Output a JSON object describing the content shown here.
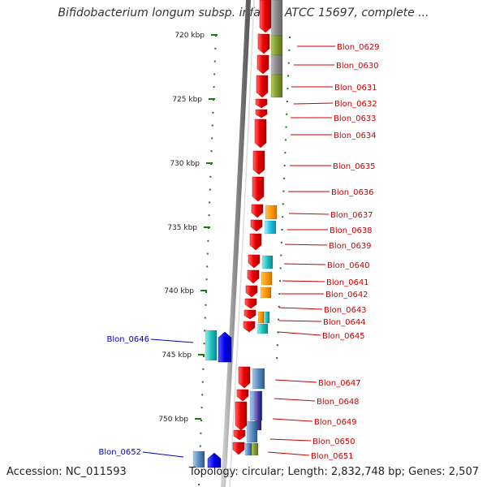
{
  "title": "Bifidobacterium longum subsp. infantis ATCC 15697, complete ...",
  "accession": "Accession: NC_011593",
  "topology": "Topology: circular; Length: 2,832,748 bp; Genes: 2,507",
  "colors": {
    "gene_red": "#ee0000",
    "label_red": "#cc0000",
    "label_blue": "#0000cc",
    "tick_green": "#1a7a1a",
    "backbone_grey": "#999999"
  },
  "ruler": [
    {
      "label": "720 kbp"
    },
    {
      "label": "725 kbp"
    },
    {
      "label": "730 kbp"
    },
    {
      "label": "735 kbp"
    },
    {
      "label": "740 kbp"
    },
    {
      "label": "745 kbp"
    },
    {
      "label": "750 kbp"
    }
  ],
  "genes_right": [
    {
      "name": "Blon_0629"
    },
    {
      "name": "Blon_0630"
    },
    {
      "name": "Blon_0631"
    },
    {
      "name": "Blon_0632"
    },
    {
      "name": "Blon_0633"
    },
    {
      "name": "Blon_0634"
    },
    {
      "name": "Blon_0635"
    },
    {
      "name": "Blon_0636"
    },
    {
      "name": "Blon_0637"
    },
    {
      "name": "Blon_0638"
    },
    {
      "name": "Blon_0639"
    },
    {
      "name": "Blon_0640"
    },
    {
      "name": "Blon_0641"
    },
    {
      "name": "Blon_0642"
    },
    {
      "name": "Blon_0643"
    },
    {
      "name": "Blon_0644"
    },
    {
      "name": "Blon_0645"
    },
    {
      "name": "Blon_0647"
    },
    {
      "name": "Blon_0648"
    },
    {
      "name": "Blon_0649"
    },
    {
      "name": "Blon_0650"
    },
    {
      "name": "Blon_0651"
    }
  ],
  "genes_left": [
    {
      "name": "Blon_0646"
    },
    {
      "name": "Blon_0652"
    }
  ]
}
